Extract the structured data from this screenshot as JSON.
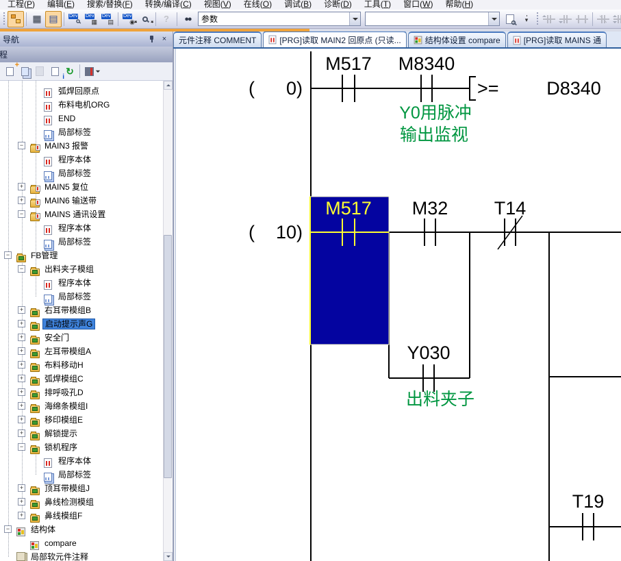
{
  "colors": {
    "selection_blue": "#0404a0",
    "selection_yellow": "#ffff30",
    "comment_green": "#009640",
    "highlight_orange": "#efa33c",
    "tree_selected": "#3f83dc"
  },
  "menu": {
    "items": [
      {
        "t": "工程",
        "k": "P"
      },
      {
        "t": "编辑",
        "k": "E"
      },
      {
        "t": "搜索/替换",
        "k": "F"
      },
      {
        "t": "转换/编译",
        "k": "C"
      },
      {
        "t": "视图",
        "k": "V"
      },
      {
        "t": "在线",
        "k": "O"
      },
      {
        "t": "调试",
        "k": "B"
      },
      {
        "t": "诊断",
        "k": "D"
      },
      {
        "t": "工具",
        "k": "T"
      },
      {
        "t": "窗口",
        "k": "W"
      },
      {
        "t": "帮助",
        "k": "H"
      }
    ]
  },
  "toolbar": {
    "dev_badge": "Dev",
    "combo1": "参数",
    "combo2": "",
    "left": [
      {
        "kind": "grip"
      },
      {
        "kind": "tree",
        "name": "navigation-window-toggle",
        "sel": true
      },
      {
        "kind": "sep"
      },
      {
        "kind": "chip",
        "name": "plc-parameter"
      },
      {
        "kind": "list",
        "name": "list-view-toggle",
        "sel": true
      },
      {
        "kind": "sep"
      },
      {
        "kind": "devfind",
        "name": "device-find"
      },
      {
        "kind": "devgrid",
        "name": "device-comment"
      },
      {
        "kind": "devbatch",
        "name": "device-batch"
      },
      {
        "kind": "sep"
      },
      {
        "kind": "deveye",
        "name": "device-display",
        "arrow": true
      },
      {
        "kind": "devmag",
        "name": "device-search",
        "arrow": true
      },
      {
        "kind": "sep"
      },
      {
        "kind": "help",
        "name": "help",
        "dis": true
      },
      {
        "kind": "sep"
      },
      {
        "kind": "binoc",
        "name": "find"
      }
    ],
    "right": [
      {
        "kind": "docmag",
        "name": "document-preview"
      },
      {
        "kind": "ovf",
        "name": "toolbar-overflow"
      },
      {
        "kind": "grip"
      },
      {
        "kind": "c1",
        "name": "insert-open-contact",
        "dis": true
      },
      {
        "kind": "c2",
        "name": "insert-close-contact",
        "dis": true
      },
      {
        "kind": "c3",
        "name": "insert-pulse-contact",
        "dis": true
      },
      {
        "kind": "sep"
      },
      {
        "kind": "c4",
        "name": "zoom-source",
        "dis": true
      },
      {
        "kind": "c5",
        "name": "jump-target",
        "dis": true
      },
      {
        "kind": "sep"
      },
      {
        "kind": "c6",
        "name": "ladder-block-up",
        "dis": true
      },
      {
        "kind": "c7",
        "name": "ladder-block-down",
        "dis": true
      },
      {
        "kind": "ovf",
        "name": "toolbar-overflow-2"
      },
      {
        "kind": "grip"
      }
    ]
  },
  "nav": {
    "title": "导航",
    "section": "工程",
    "tree": [
      {
        "d": 2,
        "b": "",
        "i": "prog",
        "t": "弧焊回原点"
      },
      {
        "d": 2,
        "b": "",
        "i": "prog",
        "t": "布料电机ORG"
      },
      {
        "d": 2,
        "b": "",
        "i": "prog",
        "t": "END"
      },
      {
        "d": 2,
        "b": "",
        "i": "lbl",
        "t": "局部标签"
      },
      {
        "d": 1,
        "b": "-",
        "i": "pf",
        "t": "MAIN3 报警"
      },
      {
        "d": 2,
        "b": "",
        "i": "prog",
        "t": "程序本体"
      },
      {
        "d": 2,
        "b": "",
        "i": "lbl",
        "t": "局部标签"
      },
      {
        "d": 1,
        "b": "+",
        "i": "pf",
        "t": "MAIN5 复位"
      },
      {
        "d": 1,
        "b": "+",
        "i": "pf",
        "t": "MAIN6 输送带"
      },
      {
        "d": 1,
        "b": "-",
        "i": "pf",
        "t": "MAINS 通讯设置"
      },
      {
        "d": 2,
        "b": "",
        "i": "prog",
        "t": "程序本体"
      },
      {
        "d": 2,
        "b": "",
        "i": "lbl",
        "t": "局部标签"
      },
      {
        "d": 0,
        "b": "-",
        "i": "fbm",
        "t": "FB管理"
      },
      {
        "d": 1,
        "b": "-",
        "i": "fb",
        "t": "出料夹子模组"
      },
      {
        "d": 2,
        "b": "",
        "i": "prog",
        "t": "程序本体"
      },
      {
        "d": 2,
        "b": "",
        "i": "lbl",
        "t": "局部标签"
      },
      {
        "d": 1,
        "b": "+",
        "i": "fb",
        "t": "右耳带模组B"
      },
      {
        "d": 1,
        "b": "+",
        "i": "fb",
        "t": "启动提示声G",
        "sel": true
      },
      {
        "d": 1,
        "b": "+",
        "i": "fb",
        "t": "安全门"
      },
      {
        "d": 1,
        "b": "+",
        "i": "fb",
        "t": "左耳带模组A"
      },
      {
        "d": 1,
        "b": "+",
        "i": "fb",
        "t": "布料移动H"
      },
      {
        "d": 1,
        "b": "+",
        "i": "fb",
        "t": "弧焊模组C"
      },
      {
        "d": 1,
        "b": "+",
        "i": "fb",
        "t": "排呼吸孔D"
      },
      {
        "d": 1,
        "b": "+",
        "i": "fb",
        "t": "海绵条模组I"
      },
      {
        "d": 1,
        "b": "+",
        "i": "fb",
        "t": "移印模组E"
      },
      {
        "d": 1,
        "b": "+",
        "i": "fb",
        "t": "解锁提示"
      },
      {
        "d": 1,
        "b": "-",
        "i": "fb",
        "t": "锁机程序"
      },
      {
        "d": 2,
        "b": "",
        "i": "prog",
        "t": "程序本体"
      },
      {
        "d": 2,
        "b": "",
        "i": "lbl",
        "t": "局部标签"
      },
      {
        "d": 1,
        "b": "+",
        "i": "fb",
        "t": "顶耳带模组J"
      },
      {
        "d": 1,
        "b": "+",
        "i": "fb",
        "t": "鼻线检测模组"
      },
      {
        "d": 1,
        "b": "+",
        "i": "fb",
        "t": "鼻线模组F"
      },
      {
        "d": 0,
        "b": "-",
        "i": "st",
        "t": "结构体"
      },
      {
        "d": 1,
        "b": "",
        "i": "st",
        "t": "compare"
      },
      {
        "d": 0,
        "b": "",
        "i": "cm",
        "t": "局部软元件注释"
      }
    ]
  },
  "tabs": [
    {
      "t": "元件注释 COMMENT",
      "icon": "",
      "active": false
    },
    {
      "t": "[PRG]读取 MAIN2 回原点 (只读...",
      "icon": "prog",
      "active": true
    },
    {
      "t": "结构体设置 compare",
      "icon": "st",
      "active": false
    },
    {
      "t": "[PRG]读取 MAINS 通",
      "icon": "prog",
      "active": false
    }
  ],
  "ladder": {
    "rung0": {
      "paren": "(",
      "step": "0)",
      "contact1": "M517",
      "contact2": "M8340",
      "op": ">=",
      "operand": "D8340",
      "comment_line1": "Y0用脉冲",
      "comment_line2": "输出监视"
    },
    "rung10": {
      "paren": "(",
      "step": "10)",
      "contact1": "M517",
      "contact2": "M32",
      "contact3": "T14",
      "branch_contact": "Y030",
      "branch_comment": "出料夹子",
      "contact4": "T19"
    }
  }
}
